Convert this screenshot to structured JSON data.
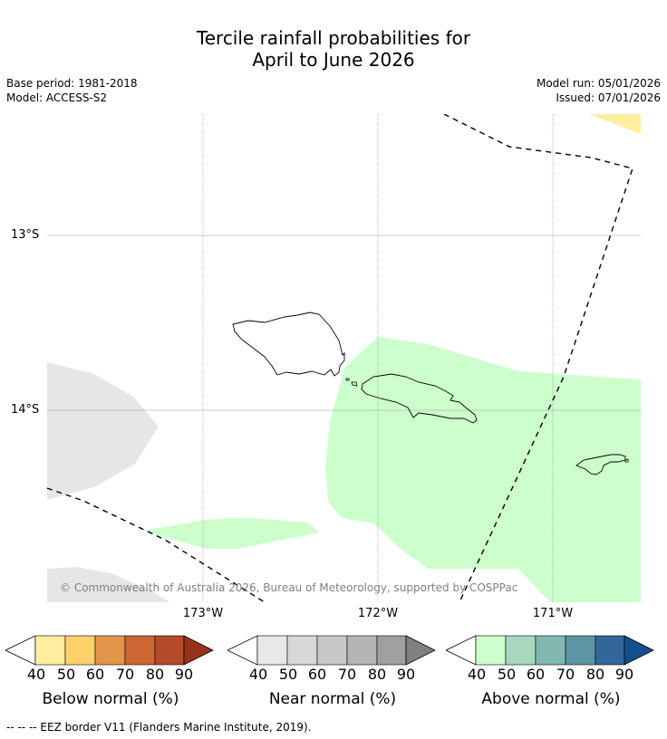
{
  "header": {
    "title_line1": "Tercile rainfall probabilities for",
    "title_line2": "April to June 2026",
    "base_period": "Base period: 1981-2018",
    "model": "Model: ACCESS-S2",
    "model_run": "Model run: 05/01/2026",
    "issued": "Issued: 07/01/2026"
  },
  "map": {
    "lat_labels": [
      "13°S",
      "14°S"
    ],
    "lon_labels": [
      "173°W",
      "172°W",
      "171°W"
    ],
    "copyright": "© Commonwealth of Australia 2026, Bureau of Meteorology, supported by COSPPac"
  },
  "legend": {
    "ticks": [
      "40",
      "50",
      "60",
      "70",
      "80",
      "90"
    ],
    "colorbars": [
      {
        "label": "Below normal (%)",
        "colors": [
          "#ffeda0",
          "#fed16a",
          "#e3954a",
          "#cc6633",
          "#b34a28",
          "#99321c"
        ]
      },
      {
        "label": "Near normal (%)",
        "colors": [
          "#e8e8e8",
          "#d8d8d8",
          "#c8c8c8",
          "#b4b4b4",
          "#a0a0a0",
          "#808080"
        ]
      },
      {
        "label": "Above normal (%)",
        "colors": [
          "#ccffcc",
          "#a7d8bf",
          "#82b8b2",
          "#5d95a4",
          "#336699",
          "#134f8e"
        ]
      }
    ]
  },
  "footnote": "--  --  -- EEZ border V11 (Flanders Marine Institute, 2019).",
  "colors": {
    "above": "#ccffcc",
    "near": "#e6e6e6",
    "below": "#ffeda0",
    "land_outline": "#000000"
  }
}
